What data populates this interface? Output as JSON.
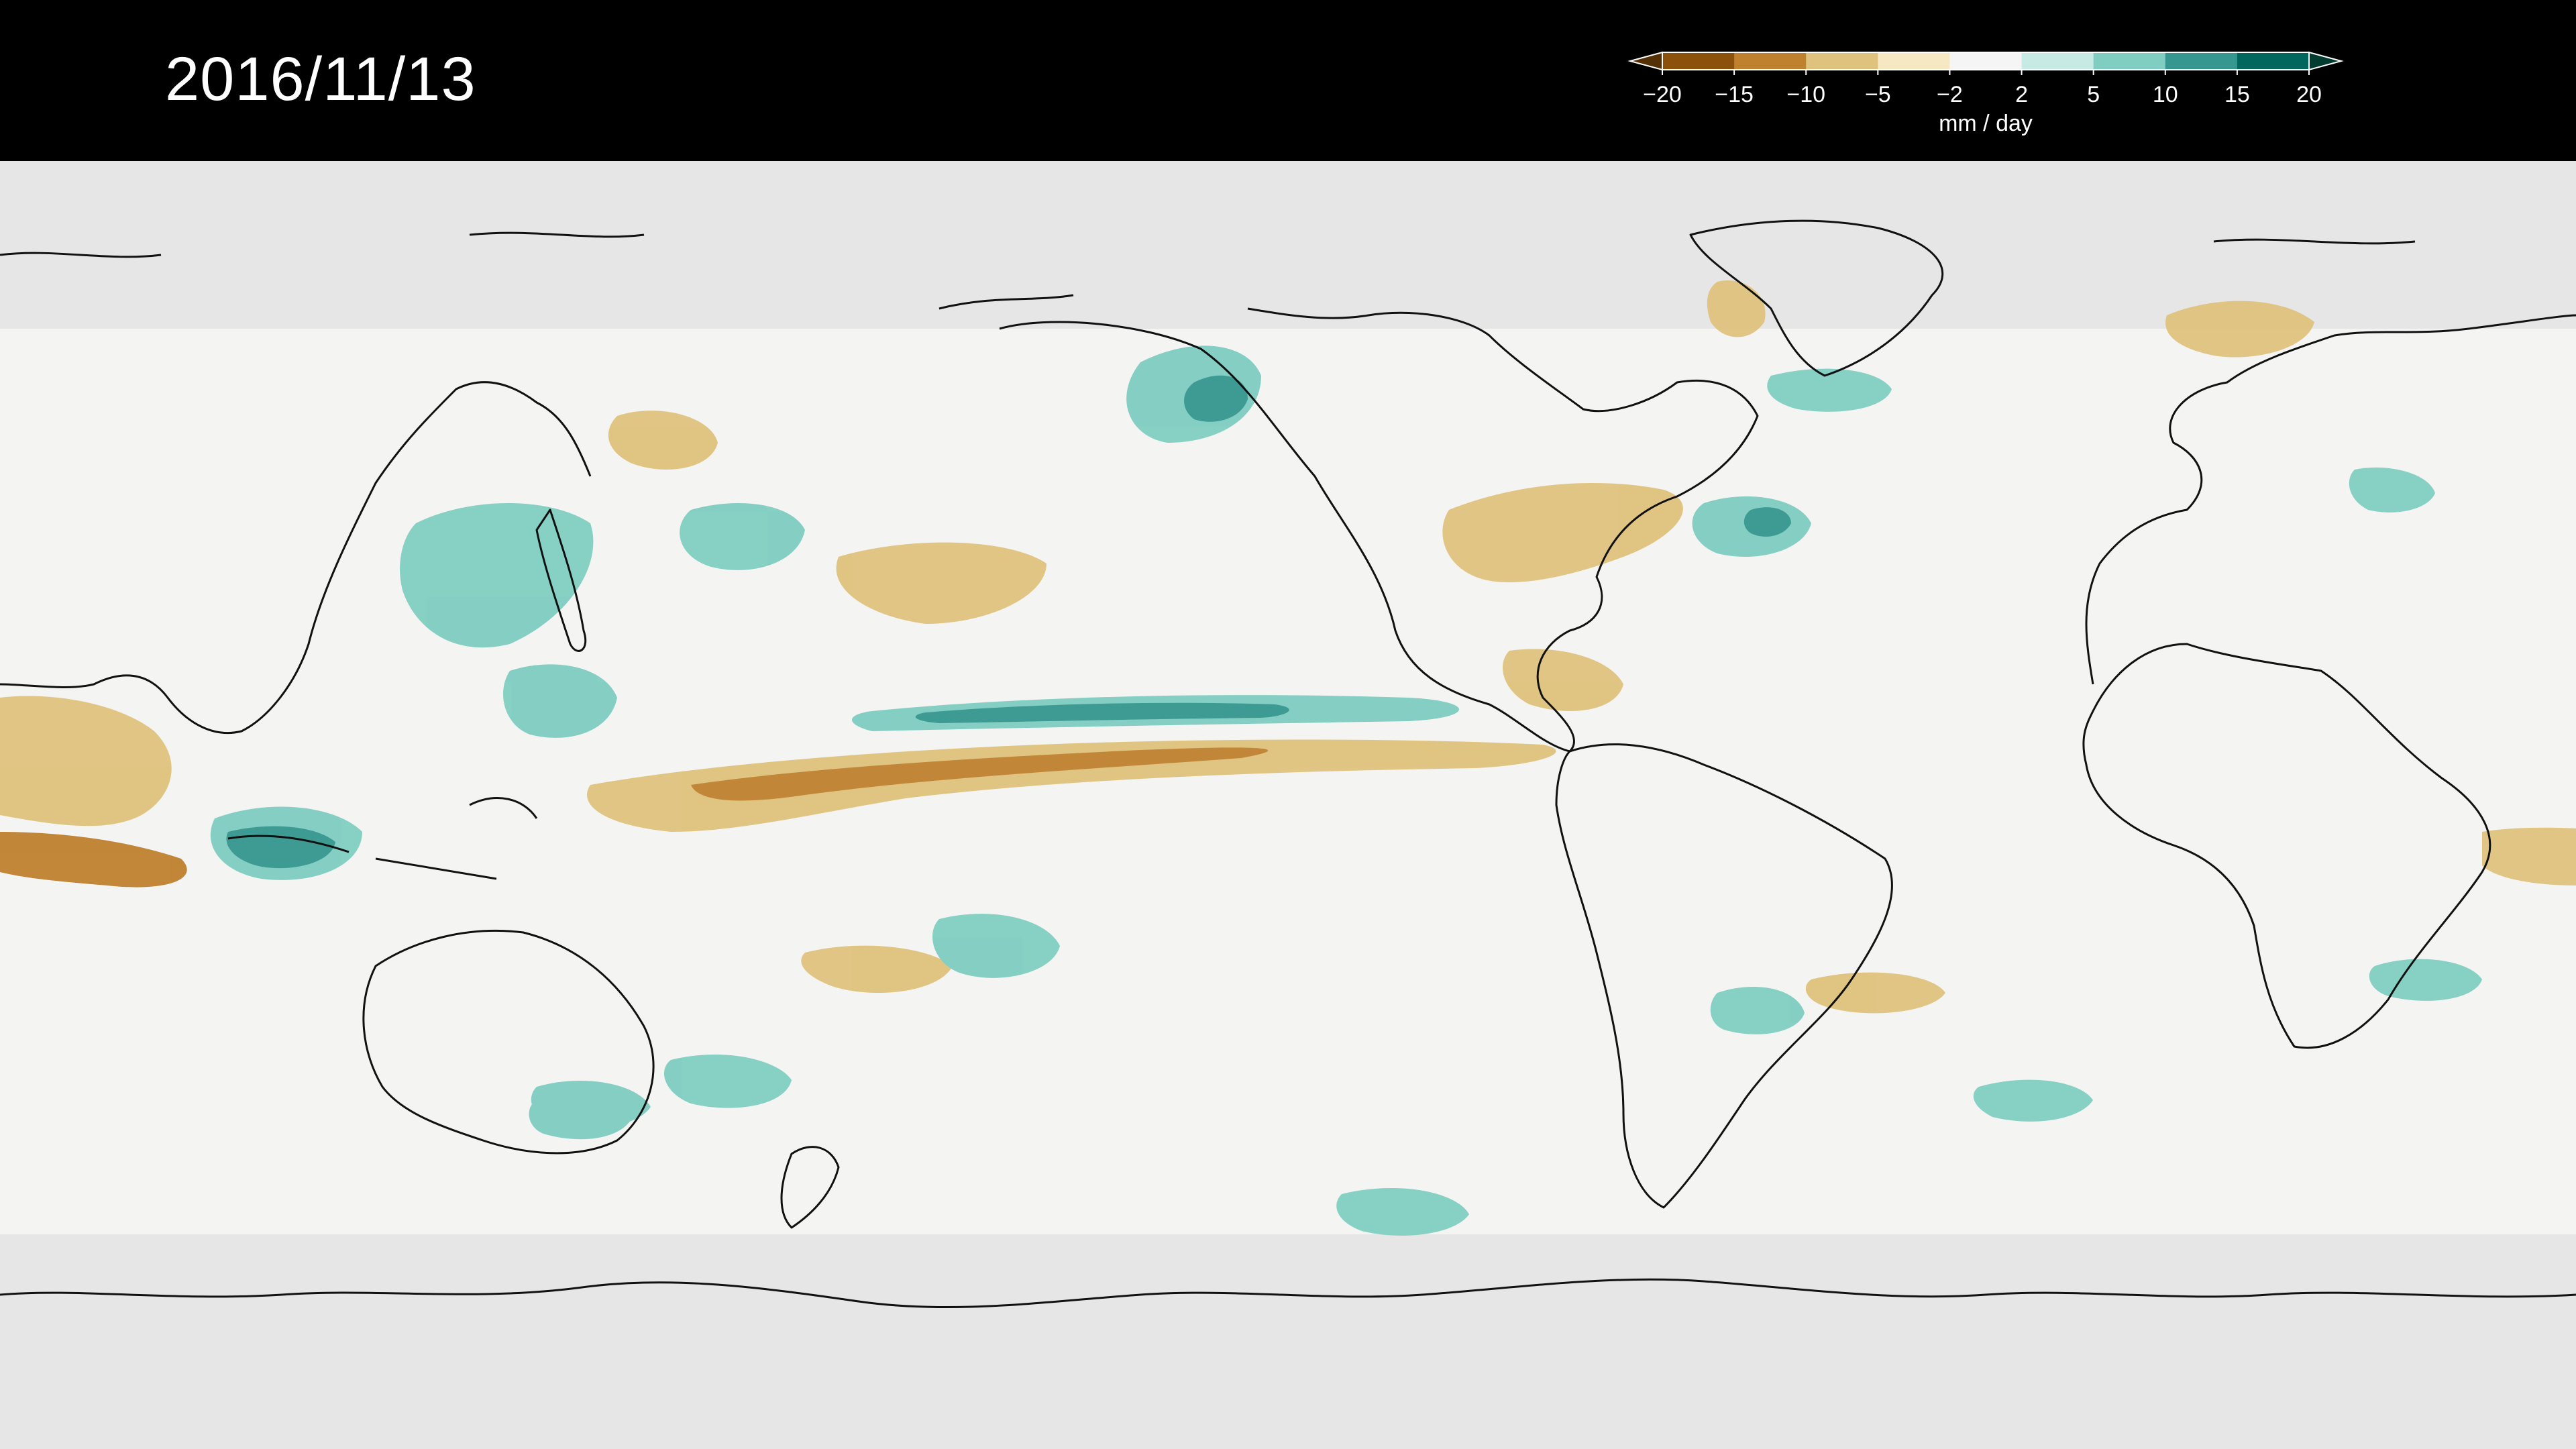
{
  "header": {
    "date": "2016/11/13"
  },
  "colorbar": {
    "unit": "mm / day",
    "tick_labels": [
      "−20",
      "−15",
      "−10",
      "−5",
      "−2",
      "2",
      "5",
      "10",
      "15",
      "20"
    ],
    "colors": [
      "#543005",
      "#8c510a",
      "#bf812d",
      "#dfc27d",
      "#f6e8c3",
      "#f5f5f5",
      "#c7eae5",
      "#80cdc1",
      "#35978f",
      "#01665e",
      "#003c30"
    ]
  },
  "map": {
    "type": "precipitation-anomaly",
    "background": "#f4f4f3",
    "polar_mask": "#e6e6e6",
    "coast_color": "#111111"
  }
}
